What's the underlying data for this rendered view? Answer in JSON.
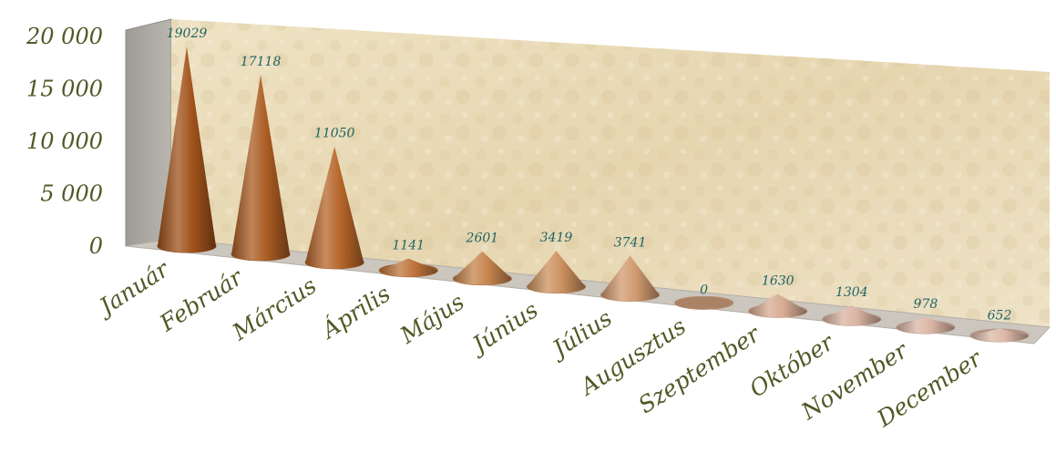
{
  "chart_data": {
    "type": "bar",
    "style": "3d-cone",
    "categories": [
      "Január",
      "Február",
      "Március",
      "Április",
      "Május",
      "Június",
      "Július",
      "Augusztus",
      "Szeptember",
      "Október",
      "November",
      "December"
    ],
    "values": [
      19029,
      17118,
      11050,
      1141,
      2601,
      3419,
      3741,
      0,
      1630,
      1304,
      978,
      652
    ],
    "data_labels": [
      "19029",
      "17118",
      "11050",
      "1141",
      "2601",
      "3419",
      "3741",
      "0",
      "1630",
      "1304",
      "978",
      "652"
    ],
    "yticks": [
      0,
      5000,
      10000,
      15000,
      20000
    ],
    "ytick_labels": [
      "0",
      "5 000",
      "10 000",
      "15 000",
      "20 000"
    ],
    "ylim": [
      0,
      20000
    ],
    "title": "",
    "xlabel": "",
    "ylabel": "",
    "grid": false,
    "legend": false
  },
  "colors": {
    "axis_text": "#4f5a26",
    "data_label": "#1f6363",
    "cone_gradient": [
      "#a0521a",
      "#b8682c",
      "#c98a54",
      "#d4a07a",
      "#d9b2a0",
      "#dcb8a8"
    ],
    "back_wall": "#eadcba",
    "side_wall": "#a9a6a0",
    "floor": "#c9c5bd"
  }
}
